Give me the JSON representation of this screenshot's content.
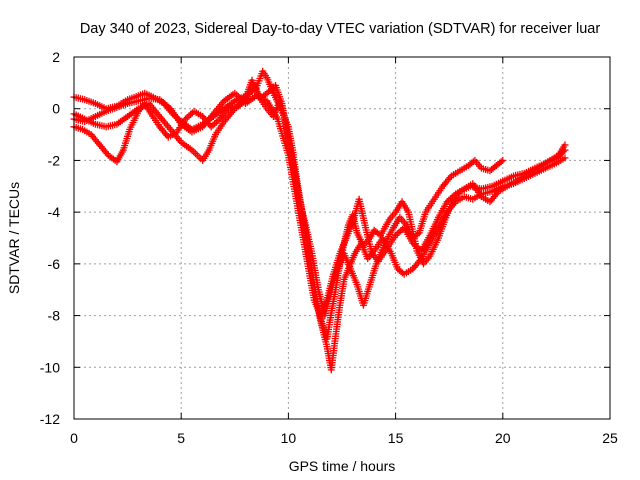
{
  "chart_data": {
    "type": "scatter",
    "title": "Day 340 of 2023, Sidereal Day-to-day VTEC variation (SDTVAR) for receiver luar",
    "xlabel": "GPS time / hours",
    "ylabel": "SDTVAR / TECUs",
    "xlim": [
      0,
      25
    ],
    "ylim": [
      -12,
      2
    ],
    "xticks": [
      0,
      5,
      10,
      15,
      20,
      25
    ],
    "yticks": [
      -12,
      -10,
      -8,
      -6,
      -4,
      -2,
      0,
      2
    ],
    "grid": true,
    "marker": "plus",
    "color": "#ff0000",
    "series": [
      {
        "name": "",
        "points": [
          [
            0.0,
            0.45
          ],
          [
            0.5,
            0.35
          ],
          [
            1.0,
            0.2
          ],
          [
            1.5,
            0.0
          ],
          [
            2.0,
            0.1
          ],
          [
            2.5,
            0.35
          ],
          [
            3.0,
            0.5
          ],
          [
            3.3,
            0.6
          ],
          [
            3.7,
            0.45
          ],
          [
            4.2,
            0.2
          ],
          [
            4.6,
            -0.2
          ],
          [
            5.0,
            -0.5
          ],
          [
            5.5,
            -0.8
          ],
          [
            6.0,
            -0.6
          ],
          [
            6.5,
            -0.3
          ],
          [
            7.0,
            0.0
          ],
          [
            7.5,
            0.3
          ],
          [
            8.0,
            0.5
          ],
          [
            8.5,
            0.8
          ],
          [
            8.8,
            1.45
          ],
          [
            9.0,
            1.2
          ],
          [
            9.3,
            0.6
          ],
          [
            9.6,
            0.1
          ],
          [
            10.0,
            -0.7
          ],
          [
            10.2,
            -1.6
          ],
          [
            10.4,
            -2.8
          ],
          [
            10.6,
            -3.8
          ],
          [
            10.8,
            -4.8
          ],
          [
            11.0,
            -5.8
          ],
          [
            11.2,
            -6.8
          ],
          [
            11.4,
            -7.8
          ],
          [
            11.6,
            -8.4
          ],
          [
            11.8,
            -8.9
          ],
          [
            12.0,
            -7.9
          ],
          [
            12.2,
            -7.0
          ],
          [
            12.4,
            -6.0
          ],
          [
            12.6,
            -5.2
          ],
          [
            12.8,
            -4.5
          ],
          [
            13.0,
            -4.1
          ],
          [
            13.2,
            -4.8
          ],
          [
            13.5,
            -5.3
          ],
          [
            13.8,
            -5.0
          ],
          [
            14.0,
            -4.7
          ],
          [
            14.3,
            -4.9
          ],
          [
            14.7,
            -4.3
          ],
          [
            15.0,
            -4.0
          ],
          [
            15.3,
            -3.6
          ],
          [
            15.6,
            -4.0
          ],
          [
            16.0,
            -5.5
          ],
          [
            16.3,
            -6.0
          ],
          [
            16.6,
            -5.7
          ],
          [
            17.0,
            -5.0
          ],
          [
            17.3,
            -4.3
          ],
          [
            17.6,
            -3.7
          ],
          [
            18.0,
            -3.2
          ],
          [
            18.5,
            -3.0
          ],
          [
            19.0,
            -3.1
          ],
          [
            19.5,
            -3.0
          ],
          [
            20.0,
            -2.8
          ],
          [
            20.5,
            -2.6
          ],
          [
            21.0,
            -2.5
          ],
          [
            21.5,
            -2.3
          ],
          [
            22.0,
            -2.1
          ],
          [
            22.5,
            -1.9
          ],
          [
            22.9,
            -1.6
          ]
        ]
      },
      {
        "name": "",
        "points": [
          [
            0.0,
            -0.2
          ],
          [
            0.5,
            -0.4
          ],
          [
            1.0,
            -0.6
          ],
          [
            1.5,
            -0.7
          ],
          [
            2.0,
            -0.6
          ],
          [
            2.5,
            -0.3
          ],
          [
            3.0,
            0.0
          ],
          [
            3.5,
            0.2
          ],
          [
            4.0,
            -0.3
          ],
          [
            4.5,
            -0.8
          ],
          [
            5.0,
            -1.3
          ],
          [
            5.5,
            -1.6
          ],
          [
            6.0,
            -2.0
          ],
          [
            6.3,
            -1.6
          ],
          [
            6.6,
            -1.0
          ],
          [
            7.0,
            -0.5
          ],
          [
            7.5,
            0.0
          ],
          [
            8.0,
            0.3
          ],
          [
            8.4,
            0.9
          ],
          [
            8.7,
            0.4
          ],
          [
            9.0,
            0.6
          ],
          [
            9.4,
            0.9
          ],
          [
            9.7,
            0.2
          ],
          [
            10.0,
            -1.2
          ],
          [
            10.3,
            -2.5
          ],
          [
            10.6,
            -3.8
          ],
          [
            10.9,
            -5.2
          ],
          [
            11.2,
            -6.8
          ],
          [
            11.5,
            -8.2
          ],
          [
            11.8,
            -9.2
          ],
          [
            12.0,
            -10.1
          ],
          [
            12.2,
            -8.8
          ],
          [
            12.4,
            -7.6
          ],
          [
            12.6,
            -6.6
          ],
          [
            12.9,
            -6.0
          ],
          [
            13.1,
            -5.6
          ],
          [
            13.4,
            -5.2
          ],
          [
            13.7,
            -5.8
          ],
          [
            14.0,
            -5.5
          ],
          [
            14.4,
            -5.0
          ],
          [
            14.8,
            -5.6
          ],
          [
            15.1,
            -6.2
          ],
          [
            15.4,
            -6.4
          ],
          [
            15.8,
            -6.2
          ],
          [
            16.2,
            -5.8
          ],
          [
            16.6,
            -5.2
          ],
          [
            17.0,
            -4.6
          ],
          [
            17.4,
            -4.0
          ],
          [
            17.8,
            -3.6
          ],
          [
            18.2,
            -3.4
          ],
          [
            18.6,
            -3.5
          ],
          [
            19.0,
            -3.3
          ],
          [
            19.5,
            -3.2
          ],
          [
            20.0,
            -3.0
          ],
          [
            20.5,
            -2.9
          ],
          [
            21.0,
            -2.7
          ],
          [
            21.5,
            -2.5
          ],
          [
            22.0,
            -2.3
          ],
          [
            22.5,
            -2.1
          ],
          [
            22.9,
            -1.9
          ]
        ]
      },
      {
        "name": "",
        "points": [
          [
            0.0,
            -0.7
          ],
          [
            0.4,
            -0.8
          ],
          [
            0.8,
            -1.0
          ],
          [
            1.2,
            -1.4
          ],
          [
            1.6,
            -1.8
          ],
          [
            2.0,
            -2.05
          ],
          [
            2.3,
            -1.6
          ],
          [
            2.6,
            -0.8
          ],
          [
            3.0,
            -0.1
          ],
          [
            3.3,
            0.2
          ],
          [
            3.6,
            -0.2
          ],
          [
            4.0,
            -0.7
          ],
          [
            4.4,
            -1.1
          ],
          [
            4.8,
            -0.9
          ],
          [
            5.2,
            -0.4
          ],
          [
            5.6,
            -0.1
          ],
          [
            6.0,
            -0.3
          ],
          [
            6.4,
            -0.7
          ],
          [
            6.8,
            -0.4
          ],
          [
            7.2,
            0.0
          ],
          [
            7.6,
            0.1
          ],
          [
            8.0,
            0.4
          ],
          [
            8.3,
            1.1
          ],
          [
            8.6,
            0.5
          ],
          [
            9.0,
            0.0
          ],
          [
            9.3,
            -0.3
          ],
          [
            9.6,
            0.3
          ],
          [
            9.9,
            -0.6
          ],
          [
            10.2,
            -2.0
          ],
          [
            10.5,
            -3.5
          ],
          [
            10.8,
            -4.5
          ],
          [
            11.1,
            -5.6
          ],
          [
            11.4,
            -7.0
          ],
          [
            11.7,
            -8.0
          ],
          [
            12.0,
            -7.0
          ],
          [
            12.3,
            -6.2
          ],
          [
            12.6,
            -5.6
          ],
          [
            12.9,
            -6.2
          ],
          [
            13.2,
            -6.8
          ],
          [
            13.5,
            -7.6
          ],
          [
            13.8,
            -6.8
          ],
          [
            14.1,
            -6.0
          ],
          [
            14.5,
            -5.2
          ],
          [
            14.9,
            -4.6
          ],
          [
            15.2,
            -4.2
          ],
          [
            15.5,
            -4.5
          ],
          [
            15.8,
            -5.0
          ],
          [
            16.1,
            -4.8
          ],
          [
            16.4,
            -4.0
          ],
          [
            16.8,
            -3.5
          ],
          [
            17.2,
            -3.0
          ],
          [
            17.6,
            -2.6
          ],
          [
            18.0,
            -2.4
          ],
          [
            18.4,
            -2.2
          ],
          [
            18.7,
            -2.0
          ],
          [
            19.0,
            -2.3
          ],
          [
            19.4,
            -2.4
          ],
          [
            19.7,
            -2.2
          ],
          [
            20.0,
            -2.0
          ]
        ]
      },
      {
        "name": "",
        "points": [
          [
            0.0,
            -0.4
          ],
          [
            0.5,
            -0.5
          ],
          [
            1.0,
            -0.3
          ],
          [
            1.5,
            -0.1
          ],
          [
            2.0,
            0.05
          ],
          [
            2.5,
            0.2
          ],
          [
            3.0,
            0.3
          ],
          [
            3.5,
            0.4
          ],
          [
            4.0,
            0.35
          ],
          [
            4.5,
            0.0
          ],
          [
            5.0,
            -0.6
          ],
          [
            5.5,
            -0.9
          ],
          [
            6.0,
            -0.7
          ],
          [
            6.5,
            -0.2
          ],
          [
            7.0,
            0.3
          ],
          [
            7.5,
            0.6
          ],
          [
            8.0,
            0.2
          ],
          [
            8.5,
            0.5
          ],
          [
            9.0,
            0.3
          ],
          [
            9.5,
            -0.4
          ],
          [
            10.0,
            -1.8
          ],
          [
            10.3,
            -3.2
          ],
          [
            10.6,
            -4.6
          ],
          [
            10.9,
            -6.0
          ],
          [
            11.2,
            -7.4
          ],
          [
            11.5,
            -8.0
          ],
          [
            11.8,
            -7.4
          ],
          [
            12.1,
            -6.4
          ],
          [
            12.4,
            -5.6
          ],
          [
            12.7,
            -5.0
          ],
          [
            13.0,
            -4.4
          ],
          [
            13.3,
            -3.5
          ],
          [
            13.6,
            -4.6
          ],
          [
            13.9,
            -5.6
          ],
          [
            14.2,
            -5.9
          ],
          [
            14.6,
            -5.4
          ],
          [
            15.0,
            -4.9
          ],
          [
            15.4,
            -4.6
          ],
          [
            15.8,
            -5.2
          ],
          [
            16.2,
            -5.5
          ],
          [
            16.6,
            -4.9
          ],
          [
            17.0,
            -4.2
          ],
          [
            17.4,
            -3.6
          ],
          [
            17.8,
            -3.3
          ],
          [
            18.2,
            -3.1
          ],
          [
            18.6,
            -2.9
          ],
          [
            19.0,
            -3.4
          ],
          [
            19.4,
            -3.6
          ],
          [
            19.8,
            -3.2
          ],
          [
            20.2,
            -3.0
          ],
          [
            20.6,
            -2.8
          ],
          [
            21.0,
            -2.6
          ],
          [
            21.4,
            -2.4
          ],
          [
            21.8,
            -2.2
          ],
          [
            22.2,
            -2.0
          ],
          [
            22.6,
            -1.8
          ],
          [
            22.9,
            -1.4
          ]
        ]
      }
    ]
  }
}
